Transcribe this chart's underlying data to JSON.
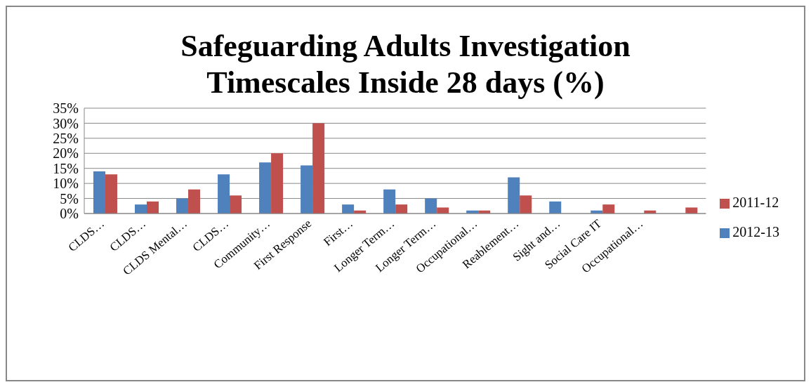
{
  "chart_data": {
    "type": "bar",
    "title": "Safeguarding Adults Investigation Timescales Inside 28 days (%)",
    "categories": [
      "CLDS…",
      "CLDS…",
      "CLDS Mental…",
      "CLDS…",
      "Community…",
      "First Response",
      "First…",
      "Longer Term…",
      "Longer Term…",
      "Occupational…",
      "Reablement…",
      "Sight and…",
      "Social Care IT",
      "Occupational…",
      null
    ],
    "series": [
      {
        "name": "2012-13",
        "color": "#4f81bd",
        "values": [
          14,
          3,
          5,
          13,
          17,
          16,
          3,
          8,
          5,
          1,
          12,
          4,
          1,
          null,
          null
        ]
      },
      {
        "name": "2011-12",
        "color": "#c0504d",
        "values": [
          13,
          4,
          8,
          6,
          20,
          30,
          1,
          3,
          2,
          1,
          6,
          null,
          3,
          1,
          2
        ]
      }
    ],
    "ylim": [
      0,
      35
    ],
    "yticks": [
      {
        "value": 0,
        "label": "0%"
      },
      {
        "value": 5,
        "label": "5%"
      },
      {
        "value": 10,
        "label": "10%"
      },
      {
        "value": 15,
        "label": "15%"
      },
      {
        "value": 20,
        "label": "20%"
      },
      {
        "value": 25,
        "label": "25%"
      },
      {
        "value": 30,
        "label": "30%"
      },
      {
        "value": 35,
        "label": "35%"
      }
    ],
    "grid": "y",
    "legend": "right"
  }
}
